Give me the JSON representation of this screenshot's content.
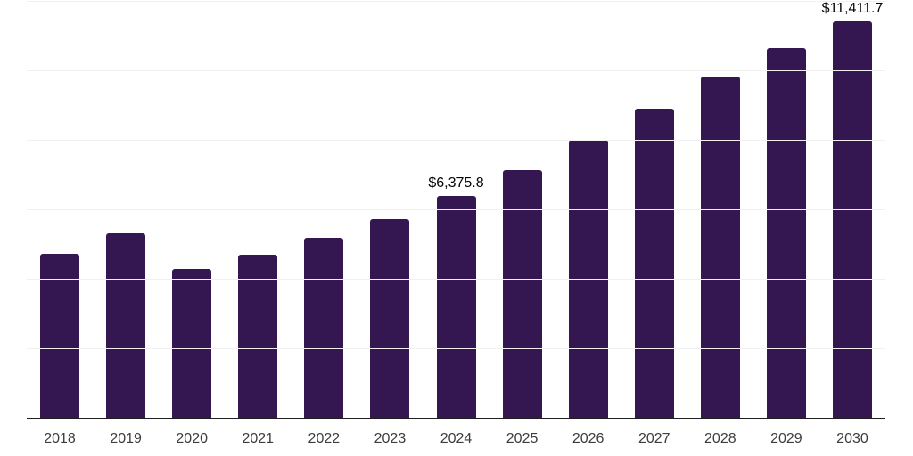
{
  "chart_data": {
    "type": "bar",
    "title": "",
    "xlabel": "",
    "ylabel": "",
    "categories": [
      "2018",
      "2019",
      "2020",
      "2021",
      "2022",
      "2023",
      "2024",
      "2025",
      "2026",
      "2027",
      "2028",
      "2029",
      "2030"
    ],
    "values": [
      4730,
      5320,
      4295,
      4690,
      5190,
      5730,
      6375.8,
      7140,
      8010,
      8910,
      9820,
      10655,
      11411.7
    ],
    "labeled_values_note": "Only 2024 and 2030 carry visible data labels; other values estimated from gridlines",
    "data_labels": {
      "2024": "$6,375.8",
      "2030": "$11,411.7"
    },
    "ylim": [
      0,
      12000
    ],
    "gridline_step": 2000,
    "grid": true,
    "legend": false,
    "colors": {
      "bar": "#341650",
      "gridline": "#f0f0f0",
      "axis_line": "#1f1f1f",
      "tick_label": "#3d3d3d",
      "data_label": "#050505",
      "background": "#ffffff"
    }
  }
}
